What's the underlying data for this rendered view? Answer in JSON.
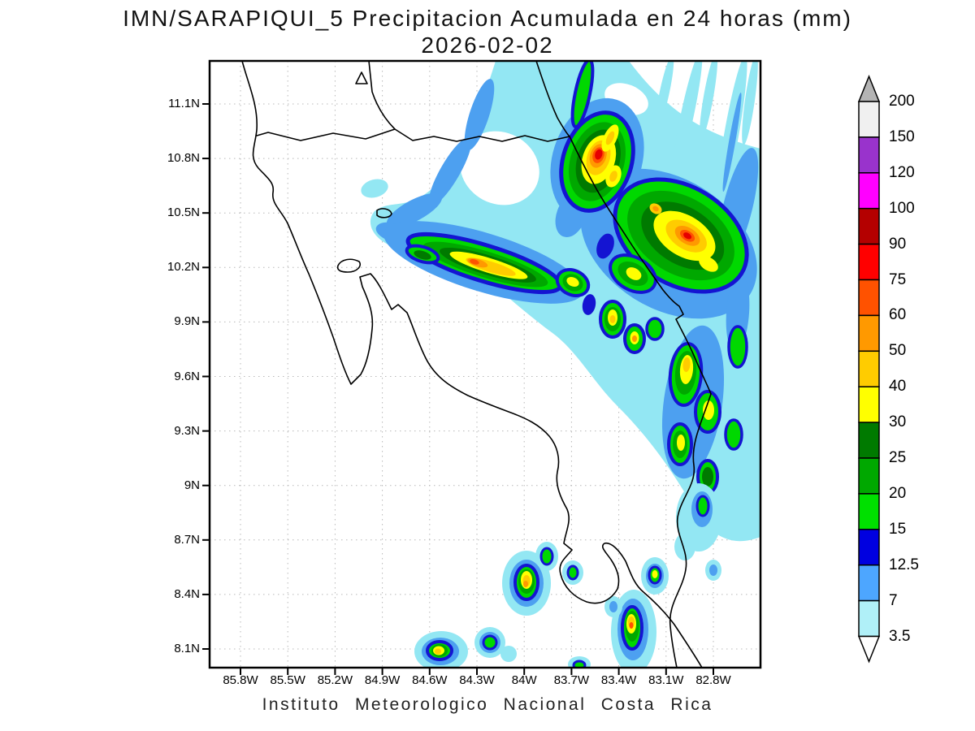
{
  "title": {
    "line1": "IMN/SARAPIQUI_5 Precipitacion Acumulada en 24 horas (mm)",
    "line2": "2026-02-02"
  },
  "footer": "Instituto Meteorologico Nacional Costa Rica",
  "map": {
    "region": "Costa Rica",
    "quantity": "Precipitacion Acumulada en 24 horas",
    "unit": "mm",
    "y_tick_labels": [
      "11.1N",
      "10.8N",
      "10.5N",
      "10.2N",
      "9.9N",
      "9.6N",
      "9.3N",
      "9N",
      "8.7N",
      "8.4N",
      "8.1N"
    ],
    "x_tick_labels": [
      "85.8W",
      "85.5W",
      "85.2W",
      "84.9W",
      "84.6W",
      "84.3W",
      "84W",
      "83.7W",
      "83.4W",
      "83.1W",
      "82.8W"
    ]
  },
  "colorbar": {
    "boundary_labels": [
      "200",
      "150",
      "120",
      "100",
      "90",
      "75",
      "60",
      "50",
      "40",
      "30",
      "25",
      "20",
      "15",
      "12.5",
      "7",
      "3.5"
    ],
    "contour_levels_mm": [
      3.5,
      7,
      12.5,
      15,
      20,
      25,
      30,
      40,
      50,
      60,
      75,
      90,
      100,
      120,
      150,
      200
    ],
    "segment_colors_top_to_bottom": [
      "#f0f0f0",
      "#9933cc",
      "#ff00ff",
      "#b40000",
      "#ff0000",
      "#ff5200",
      "#ff9900",
      "#ffcc00",
      "#ffff00",
      "#007a00",
      "#00a800",
      "#00e000",
      "#0000e0",
      "#4da6ff",
      "#b0f0f8"
    ],
    "above_max_color": "#b4b4b4",
    "below_min_color": "#ffffff"
  }
}
